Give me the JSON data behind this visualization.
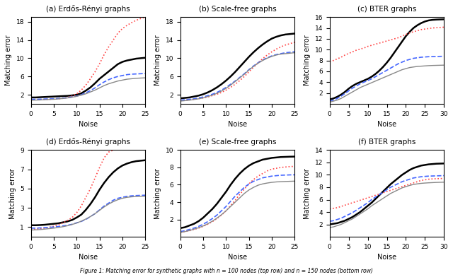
{
  "subplots": [
    {
      "title": "(a) Erdős-Rényi graphs",
      "xlabel": "Noise",
      "ylabel": "Matching error",
      "xlim": [
        0,
        25
      ],
      "ylim": [
        0,
        19
      ],
      "xticks": [
        0,
        5,
        10,
        15,
        20,
        25
      ],
      "yticks": [
        2,
        6,
        10,
        14,
        18
      ],
      "noise": [
        0,
        1,
        2,
        3,
        4,
        5,
        6,
        7,
        8,
        9,
        10,
        11,
        12,
        13,
        14,
        15,
        16,
        17,
        18,
        19,
        20,
        21,
        22,
        23,
        24,
        25
      ],
      "lines": {
        "black_thick": [
          1.4,
          1.4,
          1.45,
          1.5,
          1.55,
          1.6,
          1.65,
          1.7,
          1.75,
          1.85,
          2.0,
          2.3,
          2.9,
          3.6,
          4.5,
          5.5,
          6.3,
          7.1,
          7.9,
          8.7,
          9.2,
          9.5,
          9.7,
          9.9,
          10.0,
          10.1
        ],
        "red_dotted": [
          0.9,
          0.9,
          0.92,
          0.95,
          1.0,
          1.05,
          1.1,
          1.2,
          1.4,
          1.7,
          2.2,
          3.0,
          4.1,
          5.5,
          7.0,
          8.8,
          10.8,
          12.5,
          14.0,
          15.5,
          16.5,
          17.2,
          17.8,
          18.3,
          18.7,
          19.0
        ],
        "blue_dashed": [
          1.0,
          1.0,
          1.02,
          1.05,
          1.08,
          1.12,
          1.18,
          1.25,
          1.35,
          1.5,
          1.7,
          2.0,
          2.4,
          2.9,
          3.5,
          4.2,
          4.8,
          5.3,
          5.7,
          6.0,
          6.2,
          6.4,
          6.5,
          6.55,
          6.6,
          6.65
        ],
        "gray_thin": [
          0.8,
          0.82,
          0.85,
          0.9,
          0.95,
          1.0,
          1.08,
          1.18,
          1.3,
          1.45,
          1.65,
          1.9,
          2.2,
          2.6,
          3.0,
          3.5,
          4.0,
          4.4,
          4.7,
          5.0,
          5.2,
          5.4,
          5.5,
          5.6,
          5.65,
          5.7
        ]
      }
    },
    {
      "title": "(b) Scale-free graphs",
      "xlabel": "Noise",
      "ylabel": "Matching error",
      "xlim": [
        0,
        25
      ],
      "ylim": [
        0,
        19
      ],
      "xticks": [
        0,
        5,
        10,
        15,
        20,
        25
      ],
      "yticks": [
        2,
        6,
        10,
        14,
        18
      ],
      "noise": [
        0,
        1,
        2,
        3,
        4,
        5,
        6,
        7,
        8,
        9,
        10,
        11,
        12,
        13,
        14,
        15,
        16,
        17,
        18,
        19,
        20,
        21,
        22,
        23,
        24,
        25
      ],
      "lines": {
        "black_thick": [
          1.2,
          1.3,
          1.4,
          1.6,
          1.8,
          2.1,
          2.5,
          3.0,
          3.6,
          4.3,
          5.1,
          6.0,
          7.0,
          8.1,
          9.2,
          10.3,
          11.3,
          12.2,
          13.0,
          13.7,
          14.3,
          14.7,
          15.0,
          15.2,
          15.3,
          15.4
        ],
        "red_dotted": [
          0.7,
          0.8,
          0.9,
          1.0,
          1.15,
          1.3,
          1.5,
          1.8,
          2.1,
          2.5,
          3.0,
          3.6,
          4.3,
          5.1,
          6.0,
          7.0,
          8.0,
          9.0,
          9.9,
          10.7,
          11.4,
          12.0,
          12.5,
          12.9,
          13.2,
          13.5
        ],
        "blue_dashed": [
          0.8,
          0.9,
          1.0,
          1.1,
          1.3,
          1.5,
          1.8,
          2.1,
          2.5,
          3.0,
          3.6,
          4.3,
          5.0,
          5.8,
          6.6,
          7.5,
          8.3,
          9.0,
          9.6,
          10.1,
          10.5,
          10.8,
          11.0,
          11.2,
          11.3,
          11.4
        ],
        "gray_thin": [
          0.6,
          0.7,
          0.8,
          0.95,
          1.1,
          1.3,
          1.6,
          1.9,
          2.3,
          2.8,
          3.4,
          4.1,
          4.9,
          5.7,
          6.5,
          7.4,
          8.2,
          8.9,
          9.5,
          10.0,
          10.4,
          10.7,
          10.9,
          11.0,
          11.1,
          11.2
        ]
      }
    },
    {
      "title": "(c) BTER graphs",
      "xlabel": "Noise",
      "ylabel": "Matching error",
      "xlim": [
        0,
        30
      ],
      "ylim": [
        0,
        16
      ],
      "xticks": [
        0,
        5,
        10,
        15,
        20,
        25,
        30
      ],
      "yticks": [
        2,
        4,
        6,
        8,
        10,
        12,
        14,
        16
      ],
      "noise": [
        0,
        1,
        2,
        3,
        4,
        5,
        6,
        7,
        8,
        9,
        10,
        11,
        12,
        13,
        14,
        15,
        16,
        17,
        18,
        19,
        20,
        21,
        22,
        23,
        24,
        25,
        26,
        27,
        28,
        29,
        30
      ],
      "lines": {
        "black_thick": [
          0.8,
          1.0,
          1.3,
          1.7,
          2.2,
          2.8,
          3.3,
          3.7,
          4.0,
          4.3,
          4.6,
          5.0,
          5.5,
          6.1,
          6.8,
          7.6,
          8.5,
          9.5,
          10.5,
          11.5,
          12.5,
          13.3,
          14.0,
          14.5,
          14.9,
          15.2,
          15.4,
          15.5,
          15.55,
          15.58,
          15.6
        ],
        "red_dotted": [
          7.8,
          8.0,
          8.3,
          8.6,
          9.0,
          9.3,
          9.6,
          9.9,
          10.1,
          10.3,
          10.6,
          10.8,
          11.0,
          11.2,
          11.4,
          11.6,
          11.8,
          12.0,
          12.2,
          12.5,
          12.8,
          13.1,
          13.3,
          13.5,
          13.7,
          13.8,
          13.9,
          14.0,
          14.05,
          14.1,
          14.15
        ],
        "blue_dashed": [
          0.5,
          0.7,
          1.0,
          1.4,
          1.9,
          2.4,
          2.9,
          3.3,
          3.7,
          4.0,
          4.3,
          4.6,
          5.0,
          5.4,
          5.8,
          6.2,
          6.6,
          7.0,
          7.4,
          7.7,
          8.0,
          8.2,
          8.4,
          8.5,
          8.6,
          8.65,
          8.7,
          8.72,
          8.74,
          8.76,
          8.78
        ],
        "gray_thin": [
          0.3,
          0.5,
          0.7,
          1.0,
          1.4,
          1.8,
          2.2,
          2.6,
          3.0,
          3.3,
          3.6,
          3.9,
          4.2,
          4.5,
          4.8,
          5.1,
          5.4,
          5.7,
          6.0,
          6.3,
          6.5,
          6.7,
          6.8,
          6.9,
          6.95,
          7.0,
          7.05,
          7.08,
          7.1,
          7.12,
          7.14
        ]
      }
    },
    {
      "title": "(d) Erdős-Rényi graphs",
      "xlabel": "Noise",
      "ylabel": "Matching error",
      "xlim": [
        0,
        25
      ],
      "ylim": [
        0,
        9
      ],
      "xticks": [
        0,
        5,
        10,
        15,
        20,
        25
      ],
      "yticks": [
        1,
        3,
        5,
        7,
        9
      ],
      "noise": [
        0,
        1,
        2,
        3,
        4,
        5,
        6,
        7,
        8,
        9,
        10,
        11,
        12,
        13,
        14,
        15,
        16,
        17,
        18,
        19,
        20,
        21,
        22,
        23,
        24,
        25
      ],
      "lines": {
        "black_thick": [
          1.2,
          1.2,
          1.22,
          1.25,
          1.3,
          1.35,
          1.4,
          1.5,
          1.6,
          1.75,
          2.0,
          2.3,
          2.8,
          3.4,
          4.1,
          4.9,
          5.6,
          6.2,
          6.7,
          7.1,
          7.4,
          7.6,
          7.75,
          7.85,
          7.9,
          7.95
        ],
        "red_dotted": [
          0.8,
          0.8,
          0.85,
          0.9,
          1.0,
          1.1,
          1.25,
          1.45,
          1.7,
          2.0,
          2.5,
          3.2,
          4.1,
          5.0,
          6.1,
          7.2,
          8.2,
          8.8,
          9.0,
          9.1,
          9.15,
          9.18,
          9.2,
          9.22,
          9.24,
          9.25
        ],
        "blue_dashed": [
          0.9,
          0.9,
          0.92,
          0.95,
          0.98,
          1.02,
          1.07,
          1.13,
          1.2,
          1.3,
          1.45,
          1.6,
          1.8,
          2.1,
          2.4,
          2.8,
          3.2,
          3.5,
          3.8,
          4.0,
          4.1,
          4.2,
          4.25,
          4.28,
          4.3,
          4.32
        ],
        "gray_thin": [
          0.7,
          0.72,
          0.75,
          0.8,
          0.85,
          0.9,
          0.97,
          1.05,
          1.15,
          1.28,
          1.43,
          1.62,
          1.85,
          2.1,
          2.4,
          2.75,
          3.1,
          3.4,
          3.65,
          3.85,
          4.0,
          4.1,
          4.15,
          4.18,
          4.2,
          4.22
        ]
      }
    },
    {
      "title": "(e) Scale-free graphs",
      "xlabel": "Noise",
      "ylabel": "Matching error",
      "xlim": [
        0,
        25
      ],
      "ylim": [
        0,
        10
      ],
      "xticks": [
        0,
        5,
        10,
        15,
        20,
        25
      ],
      "yticks": [
        2,
        4,
        6,
        8,
        10
      ],
      "noise": [
        0,
        1,
        2,
        3,
        4,
        5,
        6,
        7,
        8,
        9,
        10,
        11,
        12,
        13,
        14,
        15,
        16,
        17,
        18,
        19,
        20,
        21,
        22,
        23,
        24,
        25
      ],
      "lines": {
        "black_thick": [
          1.0,
          1.1,
          1.3,
          1.5,
          1.8,
          2.2,
          2.7,
          3.2,
          3.8,
          4.5,
          5.2,
          6.0,
          6.7,
          7.3,
          7.8,
          8.2,
          8.5,
          8.7,
          8.9,
          9.0,
          9.1,
          9.15,
          9.2,
          9.22,
          9.24,
          9.25
        ],
        "red_dotted": [
          0.5,
          0.6,
          0.7,
          0.85,
          1.0,
          1.2,
          1.45,
          1.75,
          2.1,
          2.5,
          3.0,
          3.6,
          4.2,
          4.9,
          5.5,
          6.1,
          6.6,
          7.0,
          7.3,
          7.6,
          7.8,
          7.9,
          8.0,
          8.05,
          8.1,
          8.12
        ],
        "blue_dashed": [
          0.6,
          0.7,
          0.85,
          1.0,
          1.2,
          1.45,
          1.75,
          2.1,
          2.5,
          3.0,
          3.5,
          4.1,
          4.7,
          5.2,
          5.7,
          6.1,
          6.4,
          6.6,
          6.8,
          6.9,
          7.0,
          7.05,
          7.1,
          7.12,
          7.14,
          7.15
        ],
        "gray_thin": [
          0.5,
          0.6,
          0.72,
          0.88,
          1.05,
          1.25,
          1.5,
          1.8,
          2.15,
          2.55,
          3.0,
          3.5,
          4.0,
          4.5,
          5.0,
          5.4,
          5.7,
          5.95,
          6.1,
          6.2,
          6.28,
          6.33,
          6.36,
          6.38,
          6.4,
          6.42
        ]
      }
    },
    {
      "title": "(f) BTER graphs",
      "xlabel": "Noise",
      "ylabel": "Matching error",
      "xlim": [
        0,
        30
      ],
      "ylim": [
        0,
        14
      ],
      "xticks": [
        0,
        5,
        10,
        15,
        20,
        25,
        30
      ],
      "yticks": [
        2,
        4,
        6,
        8,
        10,
        12,
        14
      ],
      "noise": [
        0,
        1,
        2,
        3,
        4,
        5,
        6,
        7,
        8,
        9,
        10,
        11,
        12,
        13,
        14,
        15,
        16,
        17,
        18,
        19,
        20,
        21,
        22,
        23,
        24,
        25,
        26,
        27,
        28,
        29,
        30
      ],
      "lines": {
        "black_thick": [
          2.0,
          2.1,
          2.2,
          2.4,
          2.6,
          2.9,
          3.2,
          3.6,
          4.0,
          4.5,
          5.0,
          5.5,
          6.1,
          6.7,
          7.3,
          7.9,
          8.5,
          9.0,
          9.5,
          10.0,
          10.4,
          10.8,
          11.1,
          11.3,
          11.5,
          11.6,
          11.7,
          11.75,
          11.8,
          11.82,
          11.84
        ],
        "red_dotted": [
          4.5,
          4.6,
          4.7,
          4.9,
          5.1,
          5.3,
          5.5,
          5.7,
          5.9,
          6.1,
          6.3,
          6.5,
          6.7,
          6.9,
          7.1,
          7.3,
          7.5,
          7.7,
          7.9,
          8.1,
          8.3,
          8.5,
          8.7,
          8.9,
          9.1,
          9.2,
          9.3,
          9.35,
          9.38,
          9.4,
          9.42
        ],
        "blue_dashed": [
          2.5,
          2.6,
          2.8,
          3.0,
          3.3,
          3.6,
          3.9,
          4.3,
          4.7,
          5.1,
          5.5,
          6.0,
          6.4,
          6.8,
          7.2,
          7.6,
          8.0,
          8.3,
          8.6,
          8.9,
          9.1,
          9.3,
          9.5,
          9.6,
          9.7,
          9.75,
          9.8,
          9.82,
          9.84,
          9.86,
          9.88
        ],
        "gray_thin": [
          1.5,
          1.6,
          1.8,
          2.0,
          2.3,
          2.6,
          2.9,
          3.3,
          3.7,
          4.1,
          4.5,
          5.0,
          5.4,
          5.8,
          6.2,
          6.6,
          7.0,
          7.3,
          7.6,
          7.9,
          8.1,
          8.3,
          8.45,
          8.55,
          8.63,
          8.68,
          8.72,
          8.75,
          8.78,
          8.8,
          8.82
        ]
      }
    }
  ],
  "figure_caption": "Figure 1: Matching error for synthetic graphs with n = 100 nodes (top row) and n = 150 nodes (bottom row)",
  "colors": {
    "black_thick": "#000000",
    "red_dotted": "#ff4444",
    "blue_dashed": "#4466ff",
    "gray_thin": "#888888"
  }
}
